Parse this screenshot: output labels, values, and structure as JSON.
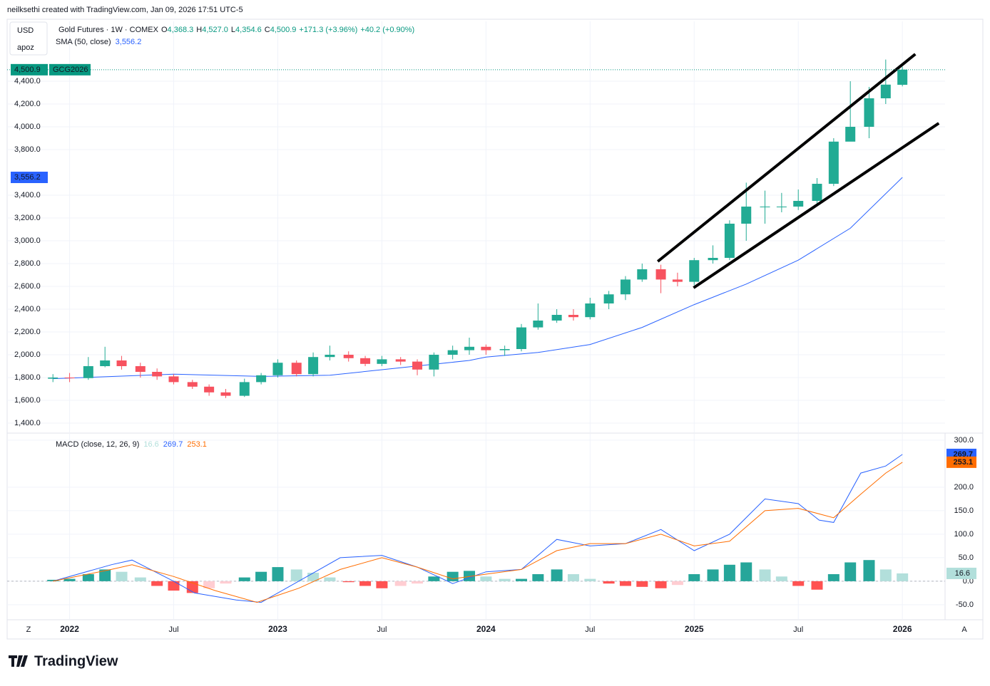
{
  "header": "neilksethi created with TradingView.com, Jan 09, 2026 17:51 UTC-5",
  "currency": "USD",
  "unit_label": "apoz",
  "brand": "TradingView",
  "axis_buttons": [
    "Z",
    "A"
  ],
  "chart_data": [
    {
      "type": "candlestick",
      "title": "Gold Futures · 1W · COMEX",
      "legend": {
        "O": "4,368.3",
        "H": "4,527.0",
        "L": "4,354.6",
        "C": "4,500.9",
        "change": "+171.3 (+3.96%)",
        "ext": "+40.2 (+0.90%)"
      },
      "legend_keys": [
        "O",
        "H",
        "L",
        "C"
      ],
      "price_label": "4,500.9",
      "price_line": 4500.9,
      "symbol": "GCG2026",
      "up_color": "#22ab94",
      "down_color": "#f7525f",
      "x": [
        2021.92,
        2022.0,
        2022.09,
        2022.17,
        2022.25,
        2022.34,
        2022.42,
        2022.5,
        2022.59,
        2022.67,
        2022.75,
        2022.84,
        2022.92,
        2023.0,
        2023.09,
        2023.17,
        2023.25,
        2023.34,
        2023.42,
        2023.5,
        2023.59,
        2023.67,
        2023.75,
        2023.84,
        2023.92,
        2024.0,
        2024.09,
        2024.17,
        2024.25,
        2024.34,
        2024.42,
        2024.5,
        2024.59,
        2024.67,
        2024.75,
        2024.84,
        2024.92,
        2025.0,
        2025.09,
        2025.17,
        2025.25,
        2025.34,
        2025.42,
        2025.5,
        2025.59,
        2025.67,
        2025.75,
        2025.84,
        2025.92,
        2026.0
      ],
      "open": [
        1790,
        1800,
        1795,
        1900,
        1950,
        1900,
        1850,
        1810,
        1760,
        1720,
        1670,
        1640,
        1760,
        1820,
        1930,
        1830,
        1980,
        2000,
        1970,
        1920,
        1960,
        1940,
        1870,
        2000,
        2040,
        2070,
        2040,
        2050,
        2240,
        2300,
        2350,
        2330,
        2450,
        2530,
        2660,
        2750,
        2660,
        2640,
        2830,
        2850,
        3150,
        3300,
        3300,
        3300,
        3350,
        3500,
        3870,
        4000,
        4250,
        4368.3
      ],
      "high": [
        1830,
        1840,
        1980,
        2070,
        1990,
        1930,
        1880,
        1830,
        1780,
        1740,
        1700,
        1790,
        1840,
        1960,
        1950,
        2020,
        2080,
        2030,
        1990,
        1990,
        1980,
        1960,
        2020,
        2080,
        2150,
        2090,
        2080,
        2270,
        2450,
        2400,
        2400,
        2500,
        2560,
        2690,
        2800,
        2790,
        2720,
        2850,
        2960,
        3180,
        3510,
        3440,
        3420,
        3450,
        3550,
        3900,
        4400,
        4350,
        4590,
        4527
      ],
      "low": [
        1760,
        1760,
        1780,
        1890,
        1870,
        1800,
        1780,
        1740,
        1700,
        1640,
        1620,
        1630,
        1740,
        1800,
        1810,
        1810,
        1950,
        1940,
        1900,
        1900,
        1910,
        1820,
        1810,
        1960,
        2000,
        2000,
        1990,
        2030,
        2220,
        2280,
        2300,
        2310,
        2400,
        2480,
        2640,
        2540,
        2600,
        2610,
        2800,
        2830,
        3000,
        3150,
        3250,
        3270,
        3320,
        3480,
        3880,
        3900,
        4200,
        4354.6
      ],
      "close": [
        1800,
        1795,
        1900,
        1950,
        1900,
        1850,
        1810,
        1760,
        1720,
        1670,
        1640,
        1760,
        1820,
        1930,
        1830,
        1980,
        2000,
        1970,
        1920,
        1960,
        1940,
        1870,
        2000,
        2040,
        2070,
        2040,
        2050,
        2240,
        2300,
        2350,
        2330,
        2450,
        2530,
        2660,
        2750,
        2660,
        2640,
        2830,
        2850,
        3150,
        3300,
        3300,
        3300,
        3350,
        3500,
        3870,
        4000,
        4250,
        4370,
        4500.9
      ],
      "sma": {
        "name": "SMA (50, close)",
        "label": "3,556.2",
        "color": "#2962ff",
        "x": [
          2021.92,
          2022.5,
          2022.92,
          2023.25,
          2023.5,
          2023.92,
          2024.0,
          2024.25,
          2024.5,
          2024.75,
          2025.0,
          2025.25,
          2025.5,
          2025.75,
          2026.0
        ],
        "values": [
          1790,
          1830,
          1810,
          1820,
          1869,
          1950,
          1980,
          2020,
          2090,
          2240,
          2440,
          2620,
          2830,
          3110,
          3556.2
        ]
      },
      "trendlines": [
        {
          "x": [
            2024.825,
            2026.062
          ],
          "values": [
            2819,
            4637.5
          ]
        },
        {
          "x": [
            2024.997,
            2026.175
          ],
          "values": [
            2587.5,
            4031
          ]
        }
      ],
      "xlim": [
        2021.7,
        2026.205
      ],
      "ylim": [
        1300,
        4900
      ],
      "yticks": [
        {
          "value": 1400,
          "label": "1,400.0"
        },
        {
          "value": 1600,
          "label": "1,600.0"
        },
        {
          "value": 1800,
          "label": "1,800.0"
        },
        {
          "value": 2000,
          "label": "2,000.0"
        },
        {
          "value": 2200,
          "label": "2,200.0"
        },
        {
          "value": 2400,
          "label": "2,400.0"
        },
        {
          "value": 2600,
          "label": "2,600.0"
        },
        {
          "value": 2800,
          "label": "2,800.0"
        },
        {
          "value": 3000,
          "label": "3,000.0"
        },
        {
          "value": 3200,
          "label": "3,200.0"
        },
        {
          "value": 3400,
          "label": "3,400.0"
        },
        {
          "value": 3800,
          "label": "3,800.0"
        },
        {
          "value": 4000,
          "label": "4,000.0"
        },
        {
          "value": 4200,
          "label": "4,200.0"
        },
        {
          "value": 4400,
          "label": "4,400.0"
        }
      ],
      "xticks": [
        {
          "value": 2022,
          "label": "2022"
        },
        {
          "value": 2022.5,
          "label": "Jul"
        },
        {
          "value": 2023,
          "label": "2023"
        },
        {
          "value": 2023.5,
          "label": "Jul"
        },
        {
          "value": 2024,
          "label": "2024"
        },
        {
          "value": 2024.5,
          "label": "Jul"
        },
        {
          "value": 2025,
          "label": "2025"
        },
        {
          "value": 2025.5,
          "label": "Jul"
        },
        {
          "value": 2026,
          "label": "2026"
        }
      ],
      "grid": true
    },
    {
      "type": "macd",
      "title": "MACD (close, 12, 26, 9)",
      "hist_label": "16.6",
      "hist_colors": [
        "#26a69a",
        "#b2dfdb",
        "#ff5252",
        "#ffcdd2"
      ],
      "x": [
        2021.92,
        2022.0,
        2022.09,
        2022.17,
        2022.25,
        2022.34,
        2022.42,
        2022.5,
        2022.59,
        2022.67,
        2022.75,
        2022.84,
        2022.92,
        2023.0,
        2023.09,
        2023.17,
        2023.25,
        2023.34,
        2023.42,
        2023.5,
        2023.59,
        2023.67,
        2023.75,
        2023.84,
        2023.92,
        2024.0,
        2024.09,
        2024.17,
        2024.25,
        2024.34,
        2024.42,
        2024.5,
        2024.59,
        2024.67,
        2024.75,
        2024.84,
        2024.92,
        2025.0,
        2025.09,
        2025.17,
        2025.25,
        2025.34,
        2025.42,
        2025.5,
        2025.59,
        2025.67,
        2025.75,
        2025.84,
        2025.92,
        2026.0
      ],
      "histogram": [
        3,
        5,
        15,
        25,
        20,
        8,
        -10,
        -20,
        -25,
        -15,
        -5,
        8,
        20,
        30,
        25,
        18,
        8,
        -2,
        -10,
        -15,
        -10,
        -5,
        10,
        20,
        22,
        10,
        5,
        5,
        15,
        25,
        15,
        5,
        -5,
        -10,
        -12,
        -15,
        -8,
        15,
        25,
        35,
        40,
        25,
        10,
        -10,
        -18,
        15,
        40,
        45,
        25,
        16.6
      ],
      "series": [
        {
          "name": "MACD",
          "label": "269.7",
          "color": "#2962ff",
          "x": [
            2021.92,
            2022.2,
            2022.3,
            2022.5,
            2022.6,
            2022.8,
            2022.92,
            2023.1,
            2023.3,
            2023.5,
            2023.67,
            2023.84,
            2024.0,
            2024.17,
            2024.34,
            2024.5,
            2024.67,
            2024.84,
            2025.0,
            2025.17,
            2025.34,
            2025.5,
            2025.6,
            2025.67,
            2025.8,
            2025.92,
            2026.0
          ],
          "values": [
            0,
            35,
            45,
            0,
            -25,
            -40,
            -45,
            0,
            50,
            55,
            30,
            -5,
            20,
            25,
            89,
            75,
            80,
            110,
            65,
            100,
            175,
            165,
            130,
            125,
            230,
            245,
            269.7
          ]
        },
        {
          "name": "Signal",
          "label": "253.1",
          "color": "#ff6d00",
          "x": [
            2021.92,
            2022.2,
            2022.3,
            2022.5,
            2022.7,
            2022.9,
            2023.1,
            2023.3,
            2023.5,
            2023.67,
            2023.84,
            2024.0,
            2024.17,
            2024.34,
            2024.5,
            2024.67,
            2024.84,
            2025.0,
            2025.17,
            2025.34,
            2025.5,
            2025.67,
            2025.8,
            2025.92,
            2026.0
          ],
          "values": [
            0,
            25,
            35,
            10,
            -20,
            -45,
            -15,
            25,
            50,
            30,
            5,
            15,
            25,
            65,
            80,
            80,
            100,
            75,
            85,
            150,
            155,
            135,
            185,
            230,
            253.1
          ]
        }
      ],
      "ylim": [
        -82,
        312
      ],
      "yticks": [
        {
          "value": -50,
          "label": "-50.0"
        },
        {
          "value": 0,
          "label": "0.0"
        },
        {
          "value": 50,
          "label": "50.0"
        },
        {
          "value": 100,
          "label": "100.0"
        },
        {
          "value": 150,
          "label": "150.0"
        },
        {
          "value": 200,
          "label": "200.0"
        },
        {
          "value": 300,
          "label": "300.0"
        }
      ],
      "grid": true
    }
  ]
}
